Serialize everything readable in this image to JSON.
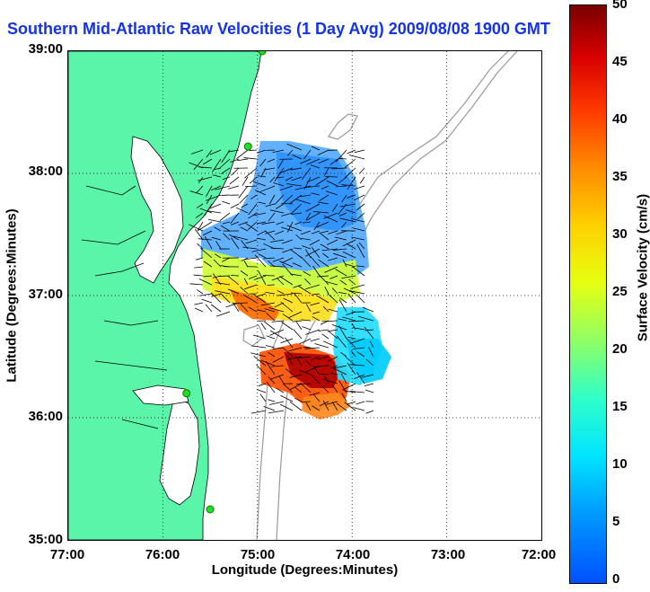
{
  "title": "Southern Mid-Atlantic Raw Velocities (1 Day Avg) 2009/08/08 1900 GMT",
  "axes": {
    "xlabel": "Longitude (Degrees:Minutes)",
    "ylabel": "Latitude (Degrees:Minutes)",
    "xticks": [
      "77:00",
      "76:00",
      "75:00",
      "74:00",
      "73:00",
      "72:00"
    ],
    "yticks": [
      "39:00",
      "38:00",
      "37:00",
      "36:00",
      "35:00"
    ],
    "grid": "dotted"
  },
  "colorbar": {
    "label": "Surface Velocity (cm/s)",
    "ticks": [
      "0",
      "5",
      "10",
      "15",
      "20",
      "25",
      "30",
      "35",
      "40",
      "45",
      "50"
    ],
    "range": [
      0,
      50
    ],
    "colors": [
      "#0050ff",
      "#00e4ff",
      "#30ffc8",
      "#e6ff10",
      "#ff8a00",
      "#d80000",
      "#7a0000"
    ]
  },
  "colors": {
    "land": "#5af5a8",
    "water": "#ffffff",
    "coastline": "#000000",
    "bathymetry": "#999999",
    "title": "#1432e6",
    "station": "#22dd22"
  },
  "map": {
    "lon_range": [
      -77,
      -72
    ],
    "lat_range": [
      35,
      39
    ],
    "stations": [
      {
        "lon": -74.95,
        "lat": 39.0
      },
      {
        "lon": -75.1,
        "lat": 38.22
      },
      {
        "lon": -75.75,
        "lat": 36.2
      },
      {
        "lon": -75.5,
        "lat": 35.25
      }
    ]
  }
}
